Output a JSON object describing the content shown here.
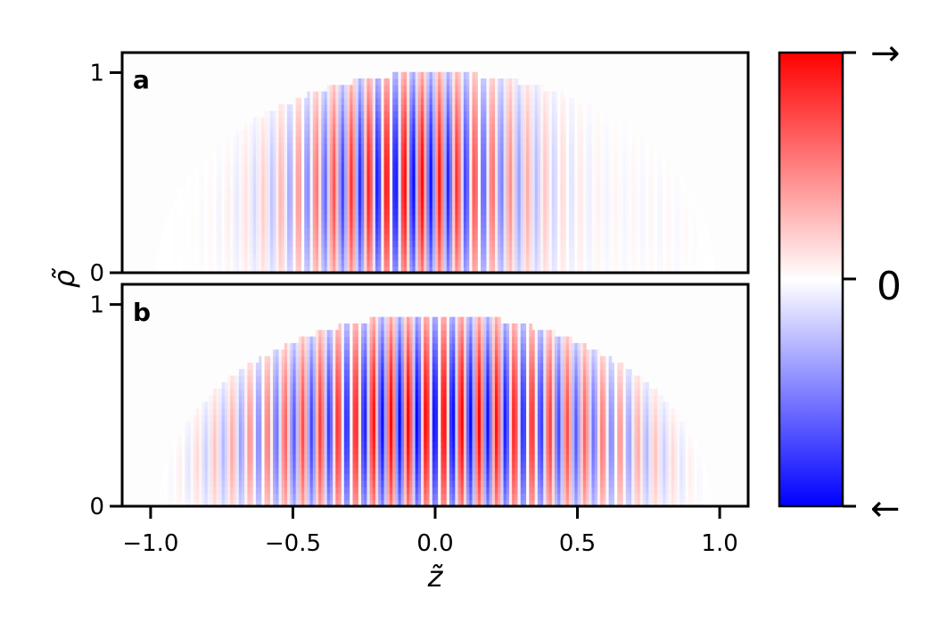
{
  "chart_data": {
    "type": "heatmap",
    "panels": [
      {
        "label": "a",
        "x_range": [
          -1.1,
          1.1
        ],
        "y_range": [
          0,
          1.1
        ],
        "support_shape": "semi-ellipse",
        "support": {
          "x_half_width": 0.98,
          "y_max": 1.0
        },
        "modulation": {
          "stripe_period": 0.062,
          "stripe_phase": 0.0,
          "beat_wavenumber": 0.65,
          "beat_phase": 0.6,
          "envelope_power": 1.6,
          "amplitude": 1.0
        },
        "value_range": [
          -1,
          1
        ]
      },
      {
        "label": "b",
        "x_range": [
          -1.1,
          1.1
        ],
        "y_range": [
          0,
          1.1
        ],
        "support_shape": "semi-ellipse",
        "support": {
          "x_half_width": 0.97,
          "y_max": 0.95
        },
        "modulation": {
          "stripe_period": 0.062,
          "stripe_phase": 0.015,
          "beat_wavenumber": 0.0,
          "beat_phase": 0.0,
          "envelope_power": 1.4,
          "amplitude": 1.0
        },
        "value_range": [
          -1,
          1
        ]
      }
    ],
    "x_ticks": [
      "−1.0",
      "−0.5",
      "0.0",
      "0.5",
      "1.0"
    ],
    "x_tick_values": [
      -1.0,
      -0.5,
      0.0,
      0.5,
      1.0
    ],
    "y_ticks": [
      "0",
      "1"
    ],
    "y_tick_values": [
      0,
      1
    ],
    "xlabel": "z̃",
    "ylabel": "ρ̃",
    "colormap": "bwr",
    "colors": {
      "negative": "#0000ff",
      "zero": "#ffffff",
      "positive": "#ff0000"
    },
    "colorbar": {
      "top_label": "→",
      "middle_label": "0",
      "bottom_label": "←"
    }
  }
}
